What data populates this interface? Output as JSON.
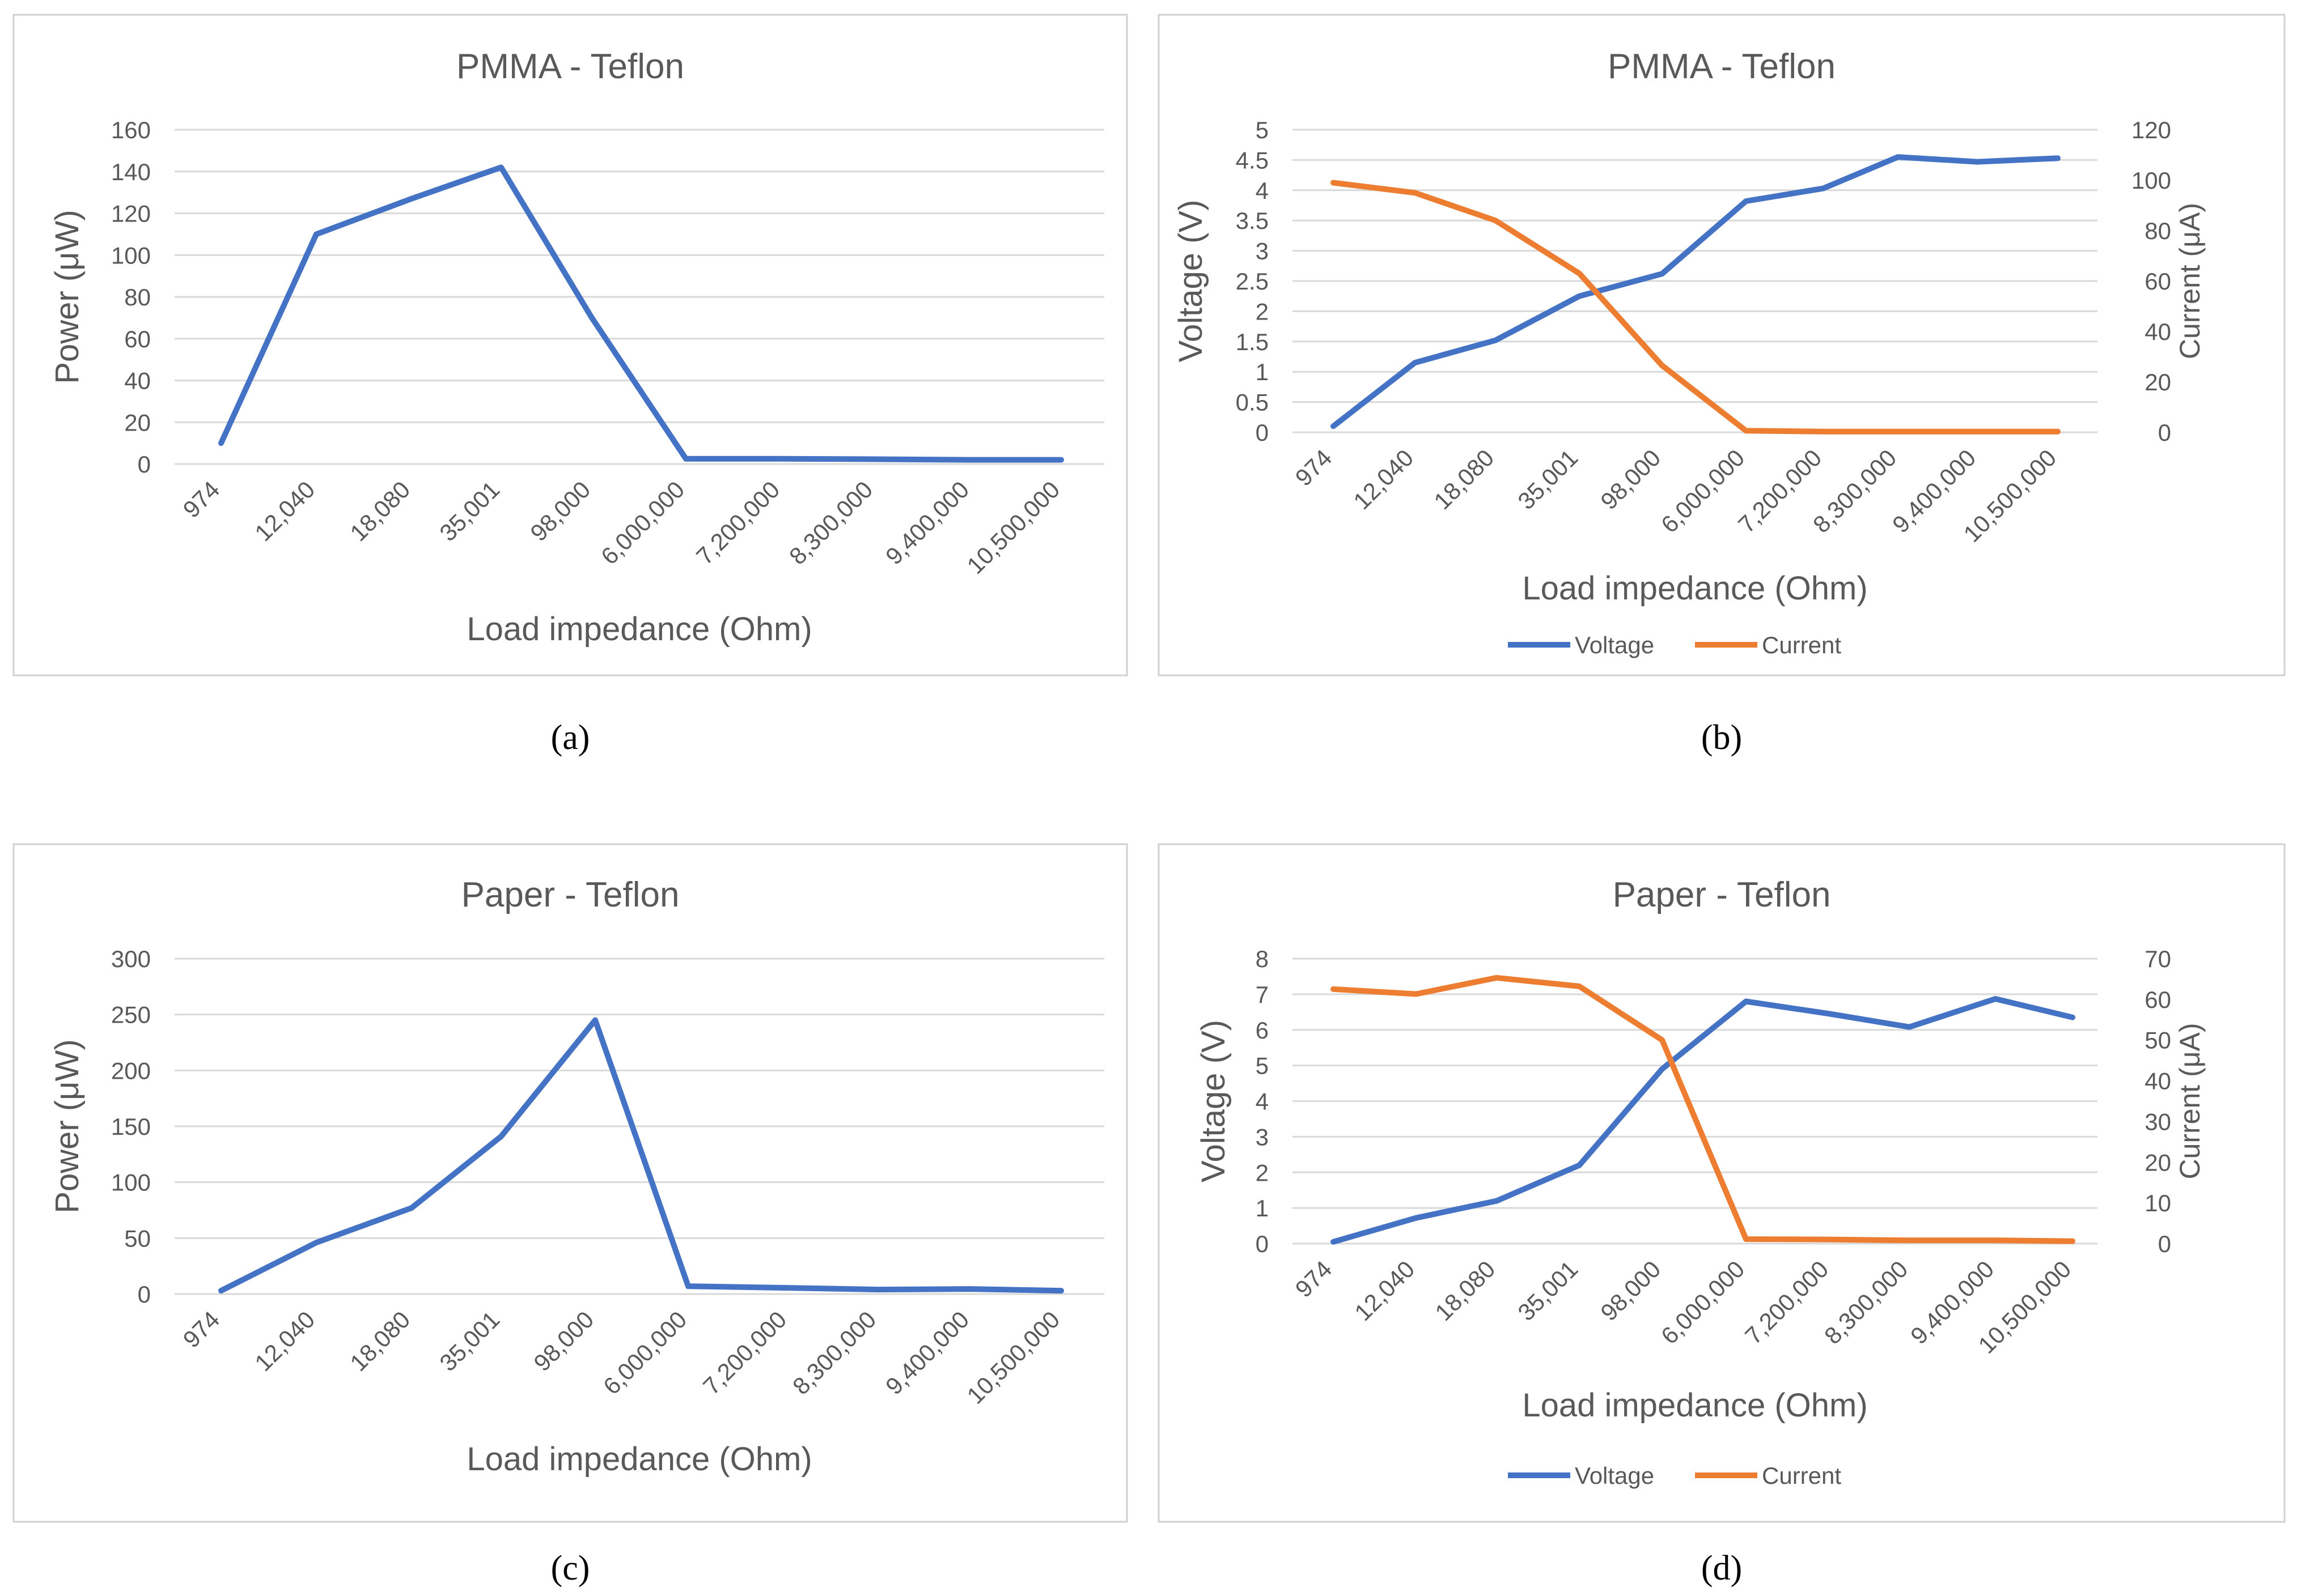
{
  "colors": {
    "voltage": "#4472C4",
    "power": "#4472C4",
    "current": "#ED7D31",
    "gridline": "#D9D9D9",
    "axis_text": "#595959",
    "frame": "#D0D0D0"
  },
  "chart_data": [
    {
      "type": "line",
      "title": "PMMA - Teflon",
      "xlabel": "Load impedance (Ohm)",
      "ylabel": "Power (μW)",
      "categories": [
        "974",
        "12,040",
        "18,080",
        "35,001",
        "98,000",
        "6,000,000",
        "7,200,000",
        "8,300,000",
        "9,400,000",
        "10,500,000"
      ],
      "ylim": [
        0,
        160
      ],
      "yticks": [
        "0",
        "20",
        "40",
        "60",
        "80",
        "100",
        "120",
        "140",
        "160"
      ],
      "grid": true,
      "legend": "none",
      "series": [
        {
          "values": [
            10,
            110,
            127,
            142,
            70,
            2.5,
            2.5,
            2.3,
            2.0,
            2.0
          ]
        }
      ],
      "caption": "(a)"
    },
    {
      "type": "line",
      "title": "PMMA - Teflon",
      "xlabel": "Load impedance (Ohm)",
      "ylabel": "Voltage (V)",
      "y2label": "Current (μA)",
      "categories": [
        "974",
        "12,040",
        "18,080",
        "35,001",
        "98,000",
        "6,000,000",
        "7,200,000",
        "8,300,000",
        "9,400,000",
        "10,500,000"
      ],
      "ylim": [
        0,
        5
      ],
      "yticks": [
        "0",
        "0.5",
        "1",
        "1.5",
        "2",
        "2.5",
        "3",
        "3.5",
        "4",
        "4.5",
        "5"
      ],
      "y2lim": [
        0,
        120
      ],
      "y2ticks": [
        "0",
        "20",
        "40",
        "60",
        "80",
        "100",
        "120"
      ],
      "grid": true,
      "legend": "bottom",
      "series": [
        {
          "name": "Voltage",
          "axis": "left",
          "values": [
            0.1,
            1.15,
            1.52,
            2.25,
            2.62,
            3.82,
            4.03,
            4.55,
            4.47,
            4.53
          ]
        },
        {
          "name": "Current",
          "axis": "right",
          "values": [
            99,
            95,
            84,
            63,
            26.5,
            0.6,
            0.3,
            0.3,
            0.3,
            0.3
          ]
        }
      ],
      "caption": "(b)"
    },
    {
      "type": "line",
      "title": "Paper - Teflon",
      "xlabel": "Load impedance (Ohm)",
      "ylabel": "Power (μW)",
      "categories": [
        "974",
        "12,040",
        "18,080",
        "35,001",
        "98,000",
        "6,000,000",
        "7,200,000",
        "8,300,000",
        "9,400,000",
        "10,500,000"
      ],
      "ylim": [
        0,
        300
      ],
      "yticks": [
        "0",
        "50",
        "100",
        "150",
        "200",
        "250",
        "300"
      ],
      "grid": true,
      "legend": "none",
      "series": [
        {
          "values": [
            3,
            46,
            77,
            141,
            245,
            7,
            5.5,
            4,
            4.5,
            3
          ]
        }
      ],
      "caption": "(c)"
    },
    {
      "type": "line",
      "title": "Paper - Teflon",
      "xlabel": "Load impedance (Ohm)",
      "ylabel": "Voltage (V)",
      "y2label": "Current (μA)",
      "categories": [
        "974",
        "12,040",
        "18,080",
        "35,001",
        "98,000",
        "6,000,000",
        "7,200,000",
        "8,300,000",
        "9,400,000",
        "10,500,000"
      ],
      "ylim": [
        0,
        8
      ],
      "yticks": [
        "0",
        "1",
        "2",
        "3",
        "4",
        "5",
        "6",
        "7",
        "8"
      ],
      "y2lim": [
        0,
        70
      ],
      "y2ticks": [
        "0",
        "10",
        "20",
        "30",
        "40",
        "50",
        "60",
        "70"
      ],
      "grid": true,
      "legend": "bottom",
      "series": [
        {
          "name": "Voltage",
          "axis": "left",
          "values": [
            0.05,
            0.72,
            1.2,
            2.2,
            4.9,
            6.8,
            6.45,
            6.08,
            6.87,
            6.35
          ]
        },
        {
          "name": "Current",
          "axis": "right",
          "values": [
            62.5,
            61.3,
            65.3,
            63.2,
            50,
            1.1,
            1.0,
            0.8,
            0.8,
            0.6
          ]
        }
      ],
      "caption": "(d)"
    }
  ]
}
